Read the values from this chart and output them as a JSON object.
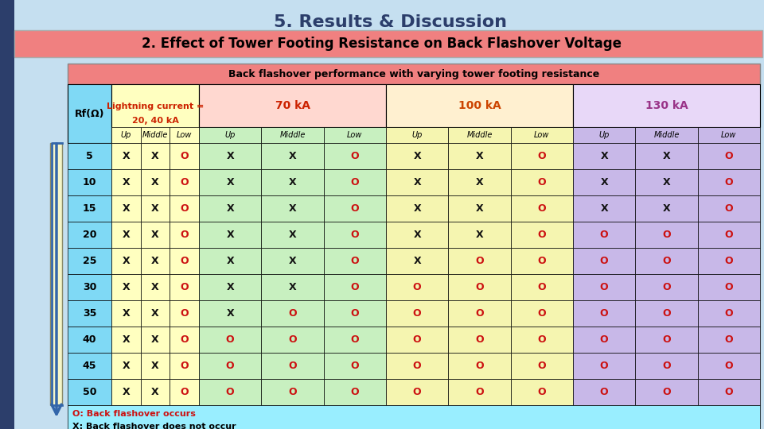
{
  "title": "5. Results & Discussion",
  "subtitle": "2. Effect of Tower Footing Resistance on Back Flashover Voltage",
  "table_title": "Back flashover performance with varying tower footing resistance",
  "rf_label": "Rf(Ω)",
  "lightning_label_line1": "Lightning current =",
  "lightning_label_line2": "20, 40 kA",
  "current_groups": [
    "70 kA",
    "100 kA",
    "130 kA"
  ],
  "sub_cols": [
    "Up",
    "Middle",
    "Low"
  ],
  "rf_values": [
    5,
    10,
    15,
    20,
    25,
    30,
    35,
    40,
    45,
    50
  ],
  "table_data": {
    "20_40": [
      [
        "X",
        "X",
        "O"
      ],
      [
        "X",
        "X",
        "O"
      ],
      [
        "X",
        "X",
        "O"
      ],
      [
        "X",
        "X",
        "O"
      ],
      [
        "X",
        "X",
        "O"
      ],
      [
        "X",
        "X",
        "O"
      ],
      [
        "X",
        "X",
        "O"
      ],
      [
        "X",
        "X",
        "O"
      ],
      [
        "X",
        "X",
        "O"
      ],
      [
        "X",
        "X",
        "O"
      ]
    ],
    "70": [
      [
        "X",
        "X",
        "O"
      ],
      [
        "X",
        "X",
        "O"
      ],
      [
        "X",
        "X",
        "O"
      ],
      [
        "X",
        "X",
        "O"
      ],
      [
        "X",
        "X",
        "O"
      ],
      [
        "X",
        "X",
        "O"
      ],
      [
        "X",
        "O",
        "O"
      ],
      [
        "O",
        "O",
        "O"
      ],
      [
        "O",
        "O",
        "O"
      ],
      [
        "O",
        "O",
        "O"
      ]
    ],
    "100": [
      [
        "X",
        "X",
        "O"
      ],
      [
        "X",
        "X",
        "O"
      ],
      [
        "X",
        "X",
        "O"
      ],
      [
        "X",
        "X",
        "O"
      ],
      [
        "X",
        "O",
        "O"
      ],
      [
        "O",
        "O",
        "O"
      ],
      [
        "O",
        "O",
        "O"
      ],
      [
        "O",
        "O",
        "O"
      ],
      [
        "O",
        "O",
        "O"
      ],
      [
        "O",
        "O",
        "O"
      ]
    ],
    "130": [
      [
        "X",
        "X",
        "O"
      ],
      [
        "X",
        "X",
        "O"
      ],
      [
        "X",
        "X",
        "O"
      ],
      [
        "O",
        "O",
        "O"
      ],
      [
        "O",
        "O",
        "O"
      ],
      [
        "O",
        "O",
        "O"
      ],
      [
        "O",
        "O",
        "O"
      ],
      [
        "O",
        "O",
        "O"
      ],
      [
        "O",
        "O",
        "O"
      ],
      [
        "O",
        "O",
        "O"
      ]
    ]
  },
  "bg_color": "#c5dff0",
  "table_title_bg": "#f08080",
  "rf_col_color": "#7fd9f5",
  "lightning_col_color": "#ffffc0",
  "col_70_color": "#c8f0c0",
  "col_100_color": "#f5f5b0",
  "col_130_color": "#c8b8e8",
  "x_color": "#111111",
  "o_color": "#cc1111",
  "note_bg": "#99eeff",
  "subtitle_bg": "#f08080",
  "title_color": "#2c3e6b",
  "group_70_color": "#cc2200",
  "group_100_color": "#cc4400",
  "group_130_color": "#993388",
  "group_70_bg": "#ffd8d0",
  "group_100_bg": "#fff0d0",
  "group_130_bg": "#e8d8f8",
  "arrow_color": "#3366aa",
  "bracket_color": "#f5f5c8"
}
